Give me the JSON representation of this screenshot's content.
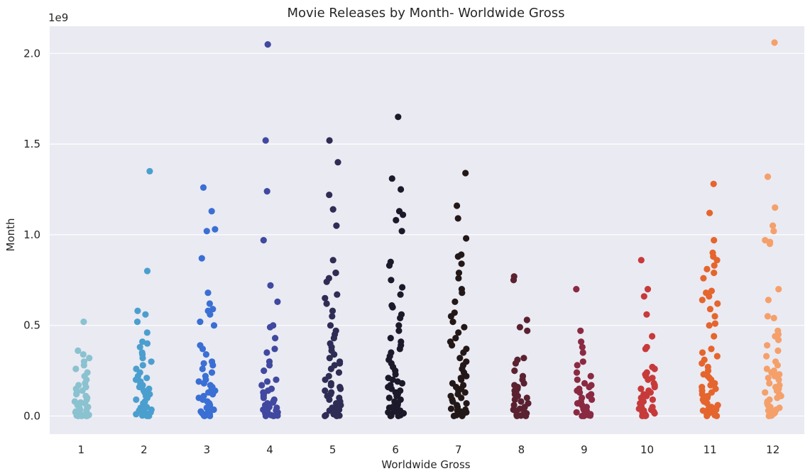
{
  "chart_data": {
    "type": "scatter",
    "subtype": "strip",
    "title": "Movie Releases by Month- Worldwide Gross",
    "xlabel": "Worldwide Gross",
    "ylabel": "Month",
    "y_offset_label": "1e9",
    "categories": [
      "1",
      "2",
      "3",
      "4",
      "5",
      "6",
      "7",
      "8",
      "9",
      "10",
      "11",
      "12"
    ],
    "ylim": [
      -0.1,
      2.15
    ],
    "yticks": [
      0.0,
      0.5,
      1.0,
      1.5,
      2.0
    ],
    "ytick_labels": [
      "0.0",
      "0.5",
      "1.0",
      "1.5",
      "2.0"
    ],
    "grid": true,
    "legend": "none",
    "background": "#eaeaf2",
    "colors": [
      "#8ac2d0",
      "#4b9fcf",
      "#3a6fd4",
      "#4148a0",
      "#2f2c55",
      "#1c1a2a",
      "#231818",
      "#5a2230",
      "#8a2a42",
      "#c73a3a",
      "#e5652e",
      "#f5a06a"
    ],
    "series": [
      {
        "name": "1",
        "values": [
          0.52,
          0.36,
          0.34,
          0.32,
          0.3,
          0.28,
          0.26,
          0.24,
          0.22,
          0.2,
          0.18,
          0.17,
          0.16,
          0.15,
          0.14,
          0.13,
          0.12,
          0.11,
          0.1,
          0.09,
          0.08,
          0.075,
          0.07,
          0.065,
          0.06,
          0.055,
          0.05,
          0.045,
          0.04,
          0.035,
          0.03,
          0.025,
          0.02,
          0.015,
          0.01,
          0.008,
          0.006,
          0.005,
          0.004,
          0.003,
          0.002,
          0.001,
          0.0,
          0.0,
          0.0
        ]
      },
      {
        "name": "2",
        "values": [
          1.35,
          0.8,
          0.58,
          0.56,
          0.52,
          0.46,
          0.41,
          0.4,
          0.38,
          0.35,
          0.34,
          0.32,
          0.3,
          0.28,
          0.26,
          0.24,
          0.22,
          0.21,
          0.2,
          0.19,
          0.18,
          0.17,
          0.16,
          0.15,
          0.14,
          0.13,
          0.12,
          0.11,
          0.1,
          0.09,
          0.08,
          0.07,
          0.06,
          0.05,
          0.045,
          0.04,
          0.035,
          0.03,
          0.025,
          0.02,
          0.015,
          0.01,
          0.008,
          0.005,
          0.003,
          0.0,
          0.0
        ]
      },
      {
        "name": "3",
        "values": [
          1.26,
          1.13,
          1.03,
          1.02,
          0.87,
          0.68,
          0.62,
          0.59,
          0.58,
          0.56,
          0.52,
          0.5,
          0.39,
          0.37,
          0.34,
          0.3,
          0.29,
          0.28,
          0.26,
          0.24,
          0.22,
          0.2,
          0.19,
          0.18,
          0.17,
          0.16,
          0.15,
          0.14,
          0.13,
          0.12,
          0.11,
          0.1,
          0.09,
          0.08,
          0.07,
          0.06,
          0.05,
          0.045,
          0.04,
          0.035,
          0.03,
          0.025,
          0.02,
          0.015,
          0.01,
          0.005,
          0.002,
          0.0,
          0.0
        ]
      },
      {
        "name": "4",
        "values": [
          2.05,
          1.52,
          1.24,
          0.97,
          0.72,
          0.63,
          0.5,
          0.49,
          0.43,
          0.37,
          0.35,
          0.3,
          0.28,
          0.25,
          0.2,
          0.19,
          0.17,
          0.15,
          0.14,
          0.13,
          0.12,
          0.11,
          0.1,
          0.09,
          0.08,
          0.075,
          0.07,
          0.06,
          0.05,
          0.045,
          0.04,
          0.035,
          0.03,
          0.025,
          0.02,
          0.015,
          0.01,
          0.005,
          0.002,
          0.0,
          0.0
        ]
      },
      {
        "name": "5",
        "values": [
          1.52,
          1.4,
          1.22,
          1.14,
          1.05,
          0.86,
          0.79,
          0.79,
          0.76,
          0.74,
          0.67,
          0.65,
          0.62,
          0.58,
          0.55,
          0.5,
          0.47,
          0.45,
          0.43,
          0.4,
          0.38,
          0.36,
          0.34,
          0.32,
          0.3,
          0.29,
          0.28,
          0.26,
          0.24,
          0.22,
          0.2,
          0.18,
          0.17,
          0.16,
          0.15,
          0.14,
          0.13,
          0.12,
          0.11,
          0.1,
          0.09,
          0.08,
          0.07,
          0.06,
          0.05,
          0.045,
          0.04,
          0.035,
          0.03,
          0.025,
          0.02,
          0.015,
          0.01,
          0.005,
          0.002,
          0.0,
          0.0
        ]
      },
      {
        "name": "6",
        "values": [
          1.65,
          1.31,
          1.25,
          1.13,
          1.11,
          1.08,
          1.02,
          0.85,
          0.83,
          0.75,
          0.71,
          0.67,
          0.61,
          0.6,
          0.56,
          0.54,
          0.5,
          0.47,
          0.43,
          0.41,
          0.39,
          0.37,
          0.35,
          0.33,
          0.31,
          0.29,
          0.27,
          0.25,
          0.23,
          0.21,
          0.2,
          0.19,
          0.18,
          0.17,
          0.16,
          0.15,
          0.14,
          0.13,
          0.12,
          0.11,
          0.1,
          0.09,
          0.08,
          0.07,
          0.06,
          0.05,
          0.045,
          0.04,
          0.035,
          0.03,
          0.025,
          0.02,
          0.015,
          0.01,
          0.005,
          0.002,
          0.0,
          0.0
        ]
      },
      {
        "name": "7",
        "values": [
          1.34,
          1.16,
          1.09,
          0.98,
          0.89,
          0.88,
          0.84,
          0.79,
          0.76,
          0.7,
          0.68,
          0.63,
          0.57,
          0.55,
          0.52,
          0.49,
          0.46,
          0.43,
          0.41,
          0.39,
          0.37,
          0.35,
          0.32,
          0.3,
          0.28,
          0.26,
          0.24,
          0.22,
          0.21,
          0.2,
          0.18,
          0.17,
          0.16,
          0.15,
          0.14,
          0.13,
          0.12,
          0.11,
          0.1,
          0.09,
          0.08,
          0.07,
          0.06,
          0.05,
          0.04,
          0.035,
          0.03,
          0.025,
          0.02,
          0.015,
          0.01,
          0.005,
          0.0,
          0.0
        ]
      },
      {
        "name": "8",
        "values": [
          0.77,
          0.75,
          0.53,
          0.49,
          0.47,
          0.32,
          0.31,
          0.29,
          0.25,
          0.22,
          0.2,
          0.18,
          0.17,
          0.16,
          0.15,
          0.14,
          0.13,
          0.12,
          0.11,
          0.1,
          0.09,
          0.08,
          0.07,
          0.06,
          0.05,
          0.045,
          0.04,
          0.035,
          0.03,
          0.025,
          0.02,
          0.015,
          0.01,
          0.005,
          0.002,
          0.0,
          0.0
        ]
      },
      {
        "name": "9",
        "values": [
          0.7,
          0.47,
          0.41,
          0.38,
          0.35,
          0.3,
          0.28,
          0.24,
          0.22,
          0.2,
          0.18,
          0.17,
          0.16,
          0.15,
          0.14,
          0.13,
          0.12,
          0.11,
          0.1,
          0.09,
          0.08,
          0.07,
          0.06,
          0.05,
          0.045,
          0.04,
          0.035,
          0.03,
          0.025,
          0.02,
          0.015,
          0.01,
          0.005,
          0.002,
          0.0,
          0.0
        ]
      },
      {
        "name": "10",
        "values": [
          0.86,
          0.7,
          0.66,
          0.56,
          0.44,
          0.38,
          0.37,
          0.27,
          0.26,
          0.24,
          0.23,
          0.22,
          0.21,
          0.2,
          0.18,
          0.17,
          0.16,
          0.15,
          0.14,
          0.13,
          0.12,
          0.11,
          0.1,
          0.09,
          0.08,
          0.07,
          0.06,
          0.05,
          0.045,
          0.04,
          0.035,
          0.03,
          0.025,
          0.02,
          0.015,
          0.01,
          0.005,
          0.002,
          0.0,
          0.0
        ]
      },
      {
        "name": "11",
        "values": [
          1.28,
          1.12,
          0.97,
          0.9,
          0.88,
          0.86,
          0.83,
          0.81,
          0.79,
          0.76,
          0.69,
          0.68,
          0.66,
          0.64,
          0.62,
          0.59,
          0.55,
          0.51,
          0.5,
          0.44,
          0.37,
          0.35,
          0.33,
          0.31,
          0.29,
          0.27,
          0.25,
          0.23,
          0.22,
          0.21,
          0.2,
          0.18,
          0.17,
          0.16,
          0.15,
          0.14,
          0.13,
          0.12,
          0.11,
          0.1,
          0.09,
          0.08,
          0.07,
          0.06,
          0.05,
          0.045,
          0.04,
          0.035,
          0.03,
          0.025,
          0.02,
          0.015,
          0.01,
          0.005,
          0.0,
          0.0
        ]
      },
      {
        "name": "12",
        "values": [
          2.06,
          1.32,
          1.15,
          1.05,
          1.02,
          0.97,
          0.96,
          0.95,
          0.7,
          0.64,
          0.55,
          0.54,
          0.47,
          0.45,
          0.44,
          0.42,
          0.39,
          0.36,
          0.33,
          0.3,
          0.28,
          0.26,
          0.25,
          0.24,
          0.23,
          0.22,
          0.21,
          0.2,
          0.18,
          0.17,
          0.16,
          0.15,
          0.14,
          0.13,
          0.12,
          0.11,
          0.1,
          0.09,
          0.08,
          0.07,
          0.06,
          0.05,
          0.045,
          0.04,
          0.035,
          0.03,
          0.025,
          0.02,
          0.015,
          0.01,
          0.005,
          0.002,
          0.0,
          0.0
        ]
      }
    ]
  }
}
